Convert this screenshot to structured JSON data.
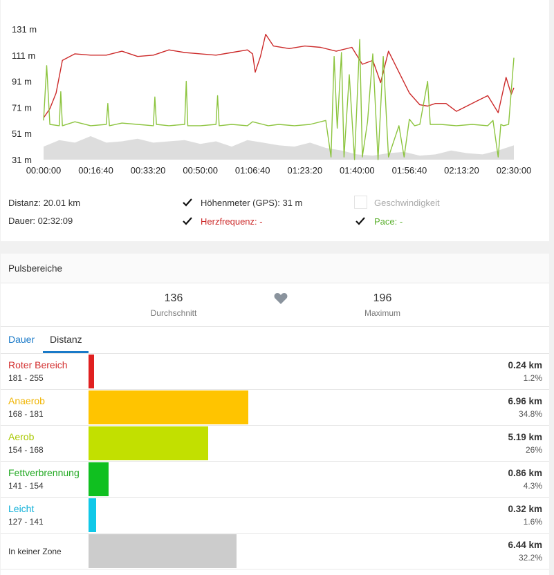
{
  "chart_data": {
    "type": "line",
    "x_ticks": [
      "00:00:00",
      "00:16:40",
      "00:33:20",
      "00:50:00",
      "01:06:40",
      "01:23:20",
      "01:40:00",
      "01:56:40",
      "02:13:20",
      "02:30:00"
    ],
    "y_ticks": [
      "131 m",
      "111 m",
      "91 m",
      "71 m",
      "51 m",
      "31 m"
    ],
    "ylim": [
      31,
      131
    ],
    "xlim_seconds": [
      0,
      9000
    ],
    "series": [
      {
        "name": "Höhenmeter (GPS)",
        "color": "#dddddd",
        "kind": "area",
        "points": [
          [
            0,
            41
          ],
          [
            300,
            46
          ],
          [
            600,
            44
          ],
          [
            900,
            49
          ],
          [
            1200,
            44
          ],
          [
            1500,
            45
          ],
          [
            1800,
            47
          ],
          [
            2100,
            44
          ],
          [
            2400,
            45
          ],
          [
            2700,
            46
          ],
          [
            3000,
            43
          ],
          [
            3300,
            45
          ],
          [
            3600,
            41
          ],
          [
            3900,
            46
          ],
          [
            4200,
            44
          ],
          [
            4500,
            42
          ],
          [
            4800,
            41
          ],
          [
            5100,
            44
          ],
          [
            5400,
            40
          ],
          [
            5700,
            38
          ],
          [
            6000,
            35
          ],
          [
            6300,
            34
          ],
          [
            6600,
            36
          ],
          [
            6900,
            37
          ],
          [
            7200,
            34
          ],
          [
            7500,
            35
          ],
          [
            7800,
            38
          ],
          [
            8100,
            36
          ],
          [
            8400,
            35
          ],
          [
            8700,
            38
          ],
          [
            9000,
            42
          ]
        ]
      },
      {
        "name": "Herzfrequenz",
        "color": "#cc2a2a",
        "kind": "line",
        "points": [
          [
            0,
            63
          ],
          [
            120,
            70
          ],
          [
            240,
            82
          ],
          [
            360,
            107
          ],
          [
            600,
            112
          ],
          [
            900,
            111
          ],
          [
            1200,
            111
          ],
          [
            1500,
            114
          ],
          [
            1800,
            110
          ],
          [
            2100,
            111
          ],
          [
            2400,
            115
          ],
          [
            2700,
            113
          ],
          [
            3000,
            112
          ],
          [
            3300,
            111
          ],
          [
            3600,
            113
          ],
          [
            3900,
            115
          ],
          [
            4000,
            112
          ],
          [
            4050,
            98
          ],
          [
            4150,
            110
          ],
          [
            4250,
            127
          ],
          [
            4400,
            118
          ],
          [
            4700,
            116
          ],
          [
            5000,
            118
          ],
          [
            5300,
            117
          ],
          [
            5600,
            114
          ],
          [
            5900,
            117
          ],
          [
            6100,
            104
          ],
          [
            6300,
            107
          ],
          [
            6450,
            90
          ],
          [
            6600,
            114
          ],
          [
            6800,
            98
          ],
          [
            7000,
            82
          ],
          [
            7200,
            73
          ],
          [
            7350,
            72
          ],
          [
            7500,
            74
          ],
          [
            7700,
            74
          ],
          [
            7900,
            68
          ],
          [
            8100,
            72
          ],
          [
            8300,
            76
          ],
          [
            8500,
            80
          ],
          [
            8700,
            67
          ],
          [
            8850,
            94
          ],
          [
            8950,
            81
          ],
          [
            9000,
            86
          ]
        ]
      },
      {
        "name": "Pace",
        "color": "#8cc43e",
        "kind": "line",
        "points": [
          [
            0,
            61
          ],
          [
            60,
            103
          ],
          [
            120,
            58
          ],
          [
            300,
            57
          ],
          [
            330,
            83
          ],
          [
            360,
            57
          ],
          [
            600,
            60
          ],
          [
            900,
            57
          ],
          [
            1200,
            58
          ],
          [
            1230,
            74
          ],
          [
            1260,
            57
          ],
          [
            1500,
            59
          ],
          [
            1800,
            58
          ],
          [
            2100,
            57
          ],
          [
            2130,
            79
          ],
          [
            2160,
            58
          ],
          [
            2400,
            57
          ],
          [
            2700,
            58
          ],
          [
            2730,
            91
          ],
          [
            2760,
            57
          ],
          [
            3000,
            57
          ],
          [
            3300,
            58
          ],
          [
            3330,
            80
          ],
          [
            3360,
            57
          ],
          [
            3600,
            58
          ],
          [
            3900,
            57
          ],
          [
            4000,
            60
          ],
          [
            4300,
            57
          ],
          [
            4500,
            58
          ],
          [
            4800,
            57
          ],
          [
            5100,
            58
          ],
          [
            5400,
            61
          ],
          [
            5500,
            33
          ],
          [
            5560,
            110
          ],
          [
            5620,
            55
          ],
          [
            5700,
            113
          ],
          [
            5750,
            33
          ],
          [
            5850,
            96
          ],
          [
            5950,
            31
          ],
          [
            6050,
            123
          ],
          [
            6100,
            33
          ],
          [
            6200,
            60
          ],
          [
            6300,
            112
          ],
          [
            6400,
            31
          ],
          [
            6500,
            110
          ],
          [
            6600,
            33
          ],
          [
            6800,
            57
          ],
          [
            6900,
            33
          ],
          [
            7000,
            62
          ],
          [
            7100,
            57
          ],
          [
            7200,
            58
          ],
          [
            7350,
            91
          ],
          [
            7400,
            58
          ],
          [
            7600,
            58
          ],
          [
            7900,
            57
          ],
          [
            8200,
            58
          ],
          [
            8500,
            57
          ],
          [
            8600,
            61
          ],
          [
            8700,
            33
          ],
          [
            8750,
            58
          ],
          [
            8800,
            57
          ],
          [
            8900,
            58
          ],
          [
            9000,
            109
          ]
        ]
      }
    ]
  },
  "stats": {
    "distance": "Distanz: 20.01 km",
    "duration": "Dauer: 02:32:09"
  },
  "legend": {
    "elevation": {
      "label": "Höhenmeter (GPS): 31 m",
      "checked": true,
      "color": "#333333"
    },
    "speed": {
      "label": "Geschwindigkeit",
      "checked": false,
      "color": "#aaaaaa"
    },
    "heart": {
      "label": "Herzfrequenz: -",
      "checked": true,
      "color": "#cc2a2a"
    },
    "pace": {
      "label": "Pace: -",
      "checked": true,
      "color": "#5bb02e"
    }
  },
  "zones_section": {
    "title": "Pulsbereiche",
    "avg_value": "136",
    "avg_label": "Durchschnitt",
    "max_value": "196",
    "max_label": "Maximum",
    "heart_icon": "heart-icon",
    "tabs": [
      {
        "label": "Dauer",
        "active": false
      },
      {
        "label": "Distanz",
        "active": true
      }
    ],
    "zones": [
      {
        "name": "Roter Bereich",
        "range": "181 - 255",
        "value": "0.24 km",
        "percent": "1.2%",
        "fraction": 0.012,
        "color": "#e02020",
        "text_color": "#d32f2f"
      },
      {
        "name": "Anaerob",
        "range": "168 - 181",
        "value": "6.96 km",
        "percent": "34.8%",
        "fraction": 0.348,
        "color": "#ffc400",
        "text_color": "#f0b400"
      },
      {
        "name": "Aerob",
        "range": "154 - 168",
        "value": "5.19 km",
        "percent": "26%",
        "fraction": 0.26,
        "color": "#c2e000",
        "text_color": "#a8c800"
      },
      {
        "name": "Fettverbrennung",
        "range": "141 - 154",
        "value": "0.86 km",
        "percent": "4.3%",
        "fraction": 0.043,
        "color": "#10c020",
        "text_color": "#20a820"
      },
      {
        "name": "Leicht",
        "range": "127 - 141",
        "value": "0.32 km",
        "percent": "1.6%",
        "fraction": 0.016,
        "color": "#10c8e8",
        "text_color": "#10b0d8"
      },
      {
        "name": "In keiner Zone",
        "range": "",
        "value": "6.44 km",
        "percent": "32.2%",
        "fraction": 0.322,
        "color": "#cccccc",
        "text_color": "#333333"
      }
    ]
  }
}
